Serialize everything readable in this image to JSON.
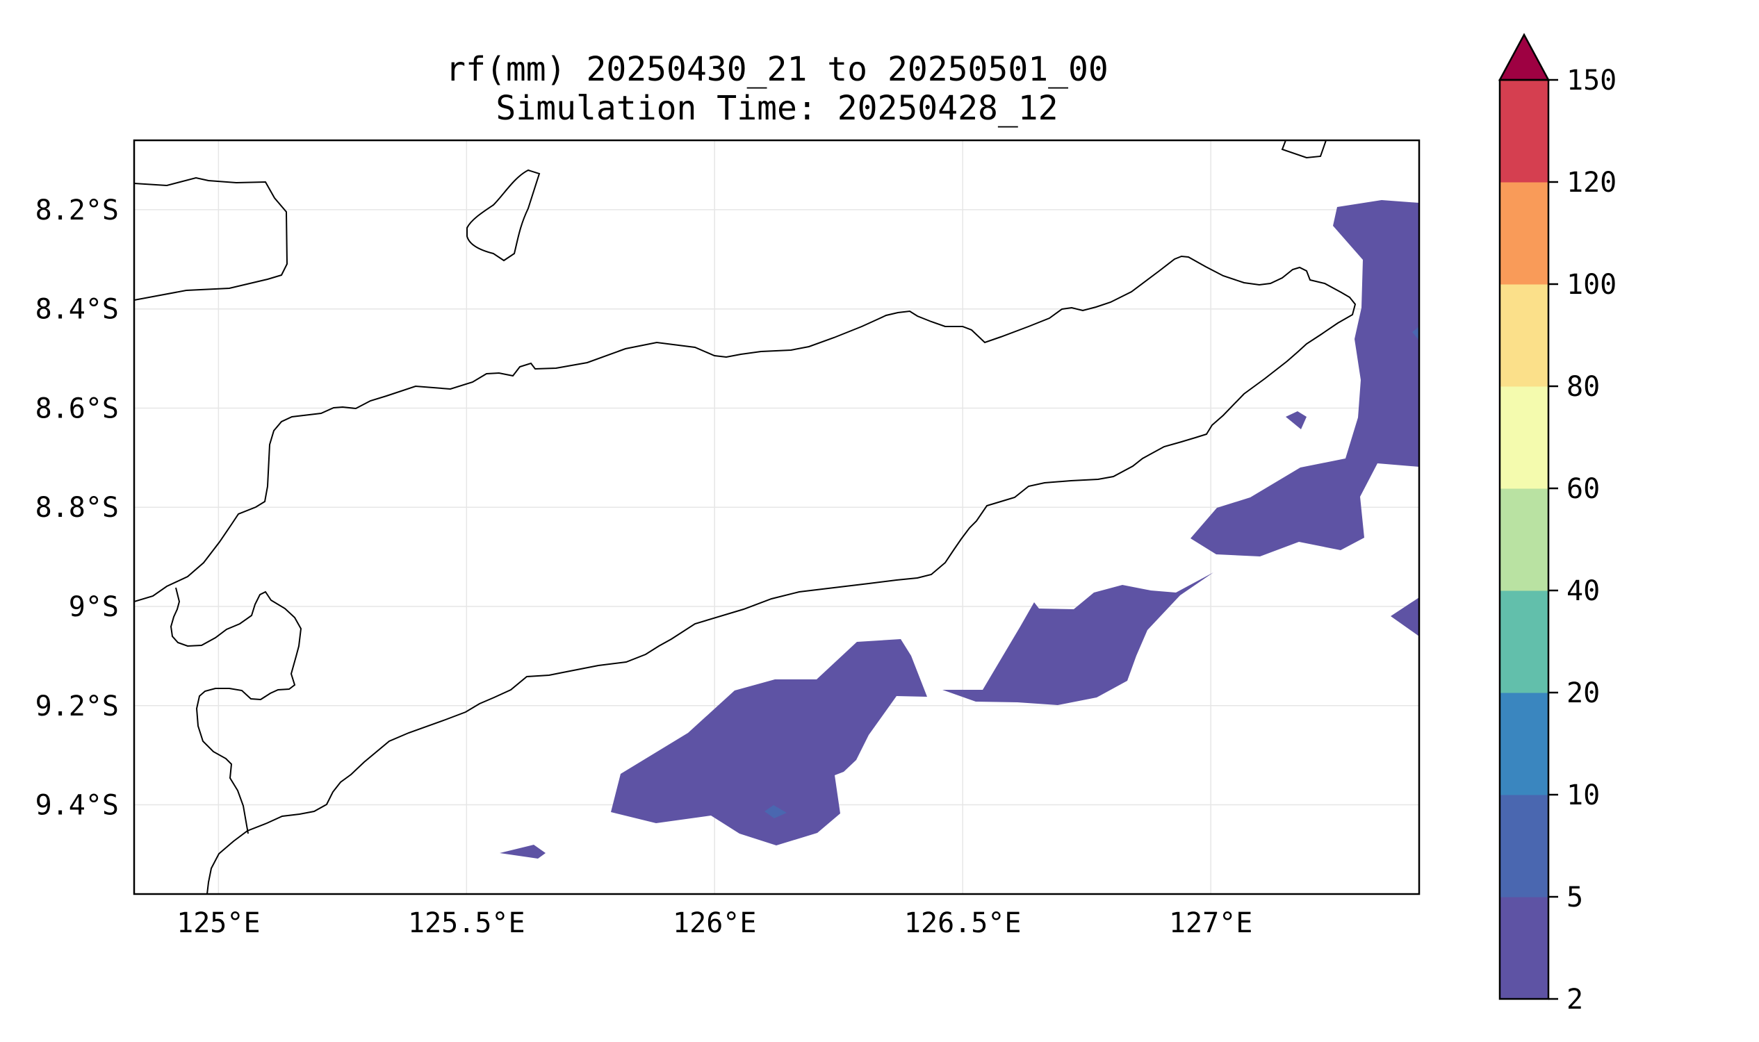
{
  "title": {
    "line1": "rf(mm) 20250430_21 to 20250501_00",
    "line2": "Simulation Time: 20250428_12"
  },
  "map": {
    "lon_range": [
      124.83,
      127.42
    ],
    "lat_range": [
      -9.58,
      -8.06
    ],
    "lon_ticks": [
      125.0,
      125.5,
      126.0,
      126.5,
      127.0
    ],
    "lon_tick_labels": [
      "125°E",
      "125.5°E",
      "126°E",
      "126.5°E",
      "127°E"
    ],
    "lat_ticks": [
      -8.2,
      -8.4,
      -8.6,
      -8.8,
      -9.0,
      -9.2,
      -9.4
    ],
    "lat_tick_labels": [
      "8.2°S",
      "8.4°S",
      "8.6°S",
      "8.8°S",
      "9°S",
      "9.2°S",
      "9.4°S"
    ],
    "grid": true
  },
  "colorbar": {
    "levels": [
      2,
      5,
      10,
      20,
      40,
      60,
      80,
      100,
      120,
      150
    ],
    "labels": [
      "2",
      "5",
      "10",
      "20",
      "40",
      "60",
      "80",
      "100",
      "120",
      "150"
    ],
    "colors": [
      "#5e53a4",
      "#4a67b0",
      "#3a86bf",
      "#62bfab",
      "#b9e2a2",
      "#f4fbae",
      "#fbe08a",
      "#f99b59",
      "#d53f50"
    ],
    "extend_color": "#9e0142",
    "extend": "max"
  },
  "colors": {
    "rain_2_5": "#5e53a4",
    "rain_5_10": "#4a67b0",
    "coastline": "#000000",
    "grid": "#e6e6e6"
  }
}
